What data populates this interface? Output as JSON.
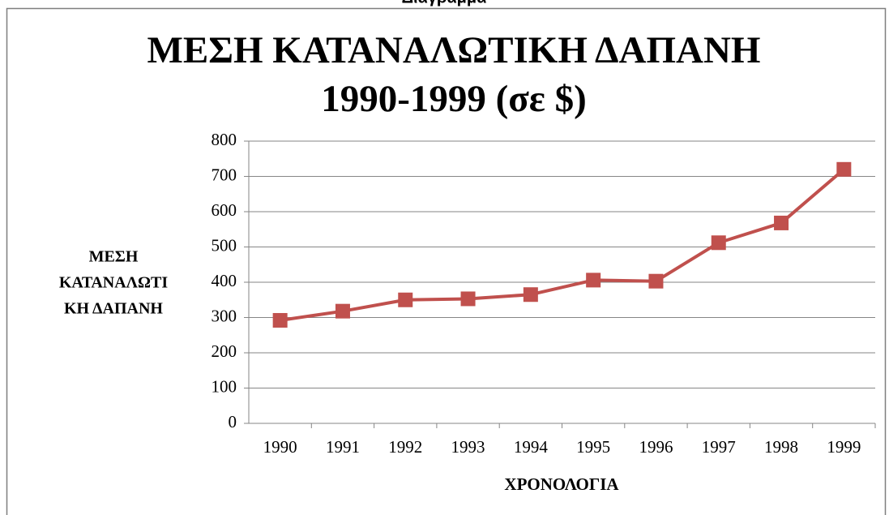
{
  "window_title": "Διάγραμμα",
  "chart_data": {
    "type": "line",
    "title": [
      "ΜΕΣΗ ΚΑΤΑΝΑΛΩΤΙΚΗ ΔΑΠΑΝΗ",
      "1990-1999 (σε $)"
    ],
    "ylabel": [
      "ΜΕΣΗ",
      "ΚΑΤΑΝΑΛΩΤΙ",
      "ΚΗ ΔΑΠΑΝΗ"
    ],
    "xlabel": "ΧΡΟΝΟΛΟΓΙΑ",
    "categories": [
      "1990",
      "1991",
      "1992",
      "1993",
      "1994",
      "1995",
      "1996",
      "1997",
      "1998",
      "1999"
    ],
    "series": [
      {
        "name": "ΜΕΣΗ ΚΑΤΑΝΑΛΩΤΙΚΗ ΔΑΠΑΝΗ",
        "color": "#c0504d",
        "values": [
          292,
          318,
          350,
          353,
          365,
          406,
          403,
          512,
          568,
          720
        ]
      }
    ],
    "ylim": [
      0,
      800
    ],
    "yticks": [
      0,
      100,
      200,
      300,
      400,
      500,
      600,
      700,
      800
    ],
    "grid": true,
    "legend": false
  }
}
